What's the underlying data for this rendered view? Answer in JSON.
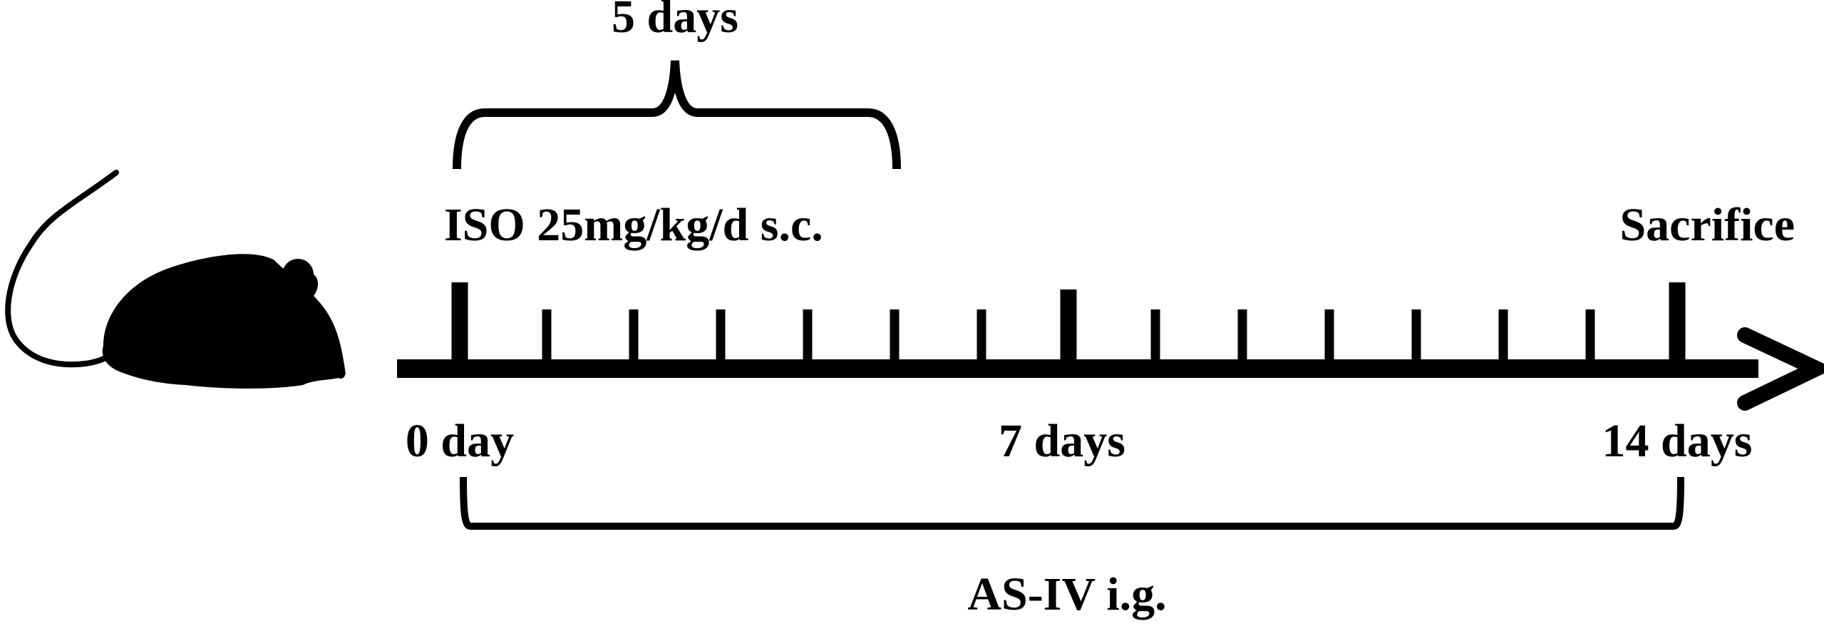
{
  "labels": {
    "duration": "5 days",
    "treatment": "ISO 25mg/kg/d s.c.",
    "endpoint": "Sacrifice",
    "day0": "0 day",
    "day7": "7 days",
    "day14": "14 days",
    "drug": "AS-IV i.g."
  }
}
